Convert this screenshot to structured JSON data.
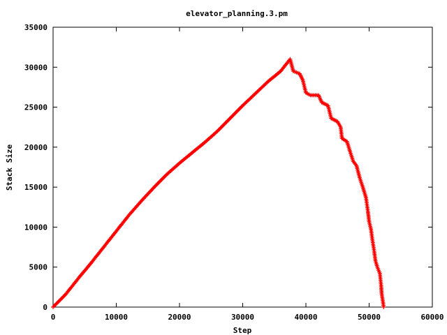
{
  "chart_data": {
    "type": "scatter",
    "title": "elevator_planning.3.pm",
    "xlabel": "Step",
    "ylabel": "Stack Size",
    "xlim": [
      0,
      60000
    ],
    "ylim": [
      0,
      35000
    ],
    "xticks": [
      0,
      10000,
      20000,
      30000,
      40000,
      50000,
      60000
    ],
    "yticks": [
      0,
      5000,
      10000,
      15000,
      20000,
      25000,
      30000,
      35000
    ],
    "grid": false,
    "legend": "none",
    "marker": "plus",
    "series": [
      {
        "color": "#ff0000",
        "points": [
          [
            0,
            0
          ],
          [
            2000,
            1600
          ],
          [
            4000,
            3600
          ],
          [
            6000,
            5500
          ],
          [
            8000,
            7500
          ],
          [
            10000,
            9500
          ],
          [
            12000,
            11500
          ],
          [
            14000,
            13300
          ],
          [
            16000,
            15000
          ],
          [
            18000,
            16600
          ],
          [
            20000,
            18000
          ],
          [
            22000,
            19300
          ],
          [
            24000,
            20600
          ],
          [
            26000,
            22000
          ],
          [
            28000,
            23600
          ],
          [
            30000,
            25200
          ],
          [
            32000,
            26700
          ],
          [
            34000,
            28200
          ],
          [
            36000,
            29500
          ],
          [
            37500,
            31000
          ],
          [
            38000,
            29500
          ],
          [
            39000,
            29200
          ],
          [
            39500,
            28400
          ],
          [
            40000,
            26800
          ],
          [
            40700,
            26500
          ],
          [
            42000,
            26500
          ],
          [
            42500,
            25600
          ],
          [
            43500,
            25200
          ],
          [
            44000,
            23600
          ],
          [
            45000,
            23200
          ],
          [
            45500,
            22500
          ],
          [
            45700,
            21100
          ],
          [
            46500,
            20700
          ],
          [
            47000,
            19400
          ],
          [
            47500,
            18200
          ],
          [
            48000,
            17700
          ],
          [
            48500,
            16200
          ],
          [
            49000,
            15000
          ],
          [
            49500,
            13700
          ],
          [
            49800,
            12000
          ],
          [
            50000,
            10700
          ],
          [
            50300,
            9700
          ],
          [
            50500,
            8500
          ],
          [
            50800,
            7000
          ],
          [
            51000,
            5800
          ],
          [
            51300,
            5000
          ],
          [
            51700,
            4200
          ],
          [
            51900,
            2700
          ],
          [
            52000,
            1600
          ],
          [
            52200,
            600
          ],
          [
            52300,
            0
          ]
        ]
      }
    ]
  }
}
